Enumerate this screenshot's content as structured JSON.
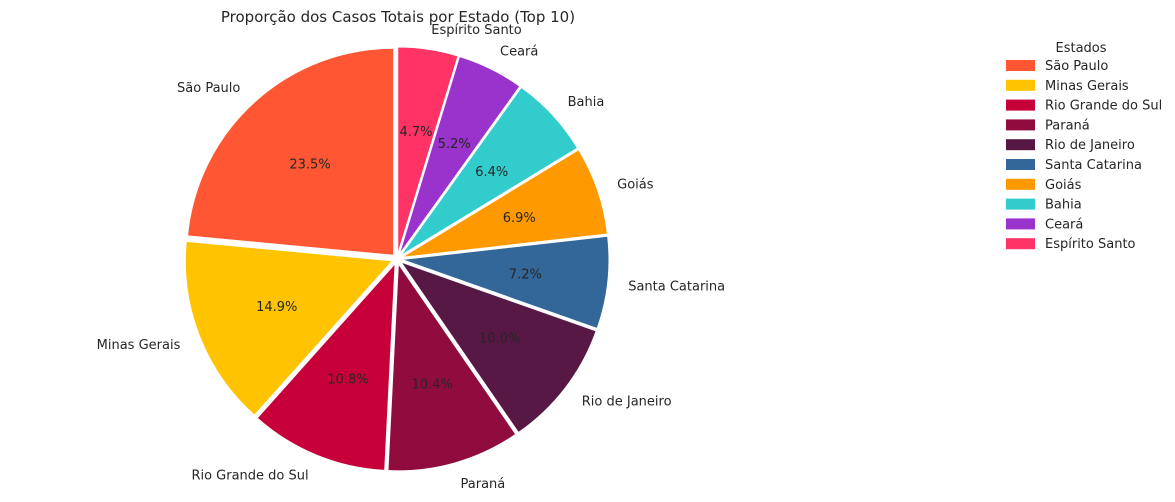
{
  "chart_data": {
    "type": "pie",
    "title": "Proporção dos Casos Totais por Estado (Top 10)",
    "categories": [
      "São Paulo",
      "Minas Gerais",
      "Rio Grande do Sul",
      "Paraná",
      "Rio de Janeiro",
      "Santa Catarina",
      "Goiás",
      "Bahia",
      "Ceará",
      "Espírito Santo"
    ],
    "values": [
      23.5,
      14.9,
      10.8,
      10.4,
      10.0,
      7.2,
      6.9,
      6.4,
      5.2,
      4.7
    ],
    "value_labels": [
      "23.5%",
      "14.9%",
      "10.8%",
      "10.4%",
      "10.0%",
      "7.2%",
      "6.9%",
      "6.4%",
      "5.2%",
      "4.7%"
    ],
    "colors": [
      "#ff5733",
      "#ffc300",
      "#c70039",
      "#900c3f",
      "#581845",
      "#336699",
      "#ff9900",
      "#33cccc",
      "#9933cc",
      "#ff3366"
    ],
    "start_angle_deg": 90,
    "direction": "counterclockwise",
    "legend": {
      "title": "Estados",
      "placement": "right"
    }
  }
}
